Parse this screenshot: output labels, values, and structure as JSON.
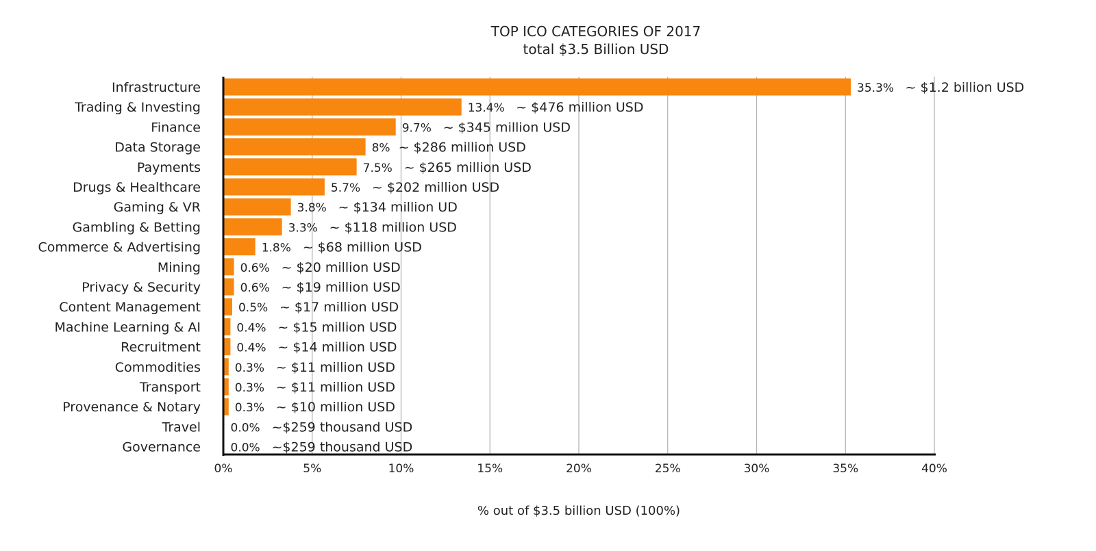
{
  "chart_data": {
    "type": "bar",
    "orientation": "horizontal",
    "title": "TOP ICO CATEGORIES OF 2017",
    "subtitle": "total $3.5 Billion USD",
    "xlabel": "% out of $3.5 billion USD (100%)",
    "ylabel": "",
    "xlim": [
      0,
      40
    ],
    "grid": true,
    "bar_color": "#f7870f",
    "x_ticks": [
      "0%",
      "5%",
      "10%",
      "15%",
      "20%",
      "25%",
      "30%",
      "35%",
      "40%"
    ],
    "categories": [
      "Infrastructure",
      "Trading & Investing",
      "Finance",
      "Data Storage",
      "Payments",
      "Drugs & Healthcare",
      "Gaming & VR",
      "Gambling & Betting",
      "Commerce & Advertising",
      "Mining",
      "Privacy & Security",
      "Content Management",
      "Machine Learning & AI",
      "Recruitment",
      "Commodities",
      "Transport",
      "Provenance & Notary",
      "Travel",
      "Governance"
    ],
    "values": [
      35.3,
      13.4,
      9.7,
      8,
      7.5,
      5.7,
      3.8,
      3.3,
      1.8,
      0.6,
      0.6,
      0.5,
      0.4,
      0.4,
      0.3,
      0.3,
      0.3,
      0.0,
      0.0
    ],
    "value_labels": [
      "35.3%",
      "13.4%",
      "9.7%",
      "8%",
      "7.5%",
      "5.7%",
      "3.8%",
      "3.3%",
      "1.8%",
      "0.6%",
      "0.6%",
      "0.5%",
      "0.4%",
      "0.4%",
      "0.3%",
      "0.3%",
      "0.3%",
      "0.0%",
      "0.0%"
    ],
    "amount_labels": [
      "~ $1.2 billion USD",
      "~ $476 million  USD",
      "~ $345 million USD",
      "~ $286 million USD",
      "~ $265 million USD",
      "~ $202 million USD",
      "~ $134 million UD",
      "~ $118 million USD",
      "~ $68 million USD",
      "~ $20 million USD",
      "~ $19 million USD",
      "~ $17 million USD",
      "~ $15 million USD",
      "~ $14 million USD",
      "~ $11 million USD",
      "~ $11 million USD",
      "~ $10 million USD",
      "~$259 thousand USD",
      "~$259 thousand USD"
    ]
  }
}
